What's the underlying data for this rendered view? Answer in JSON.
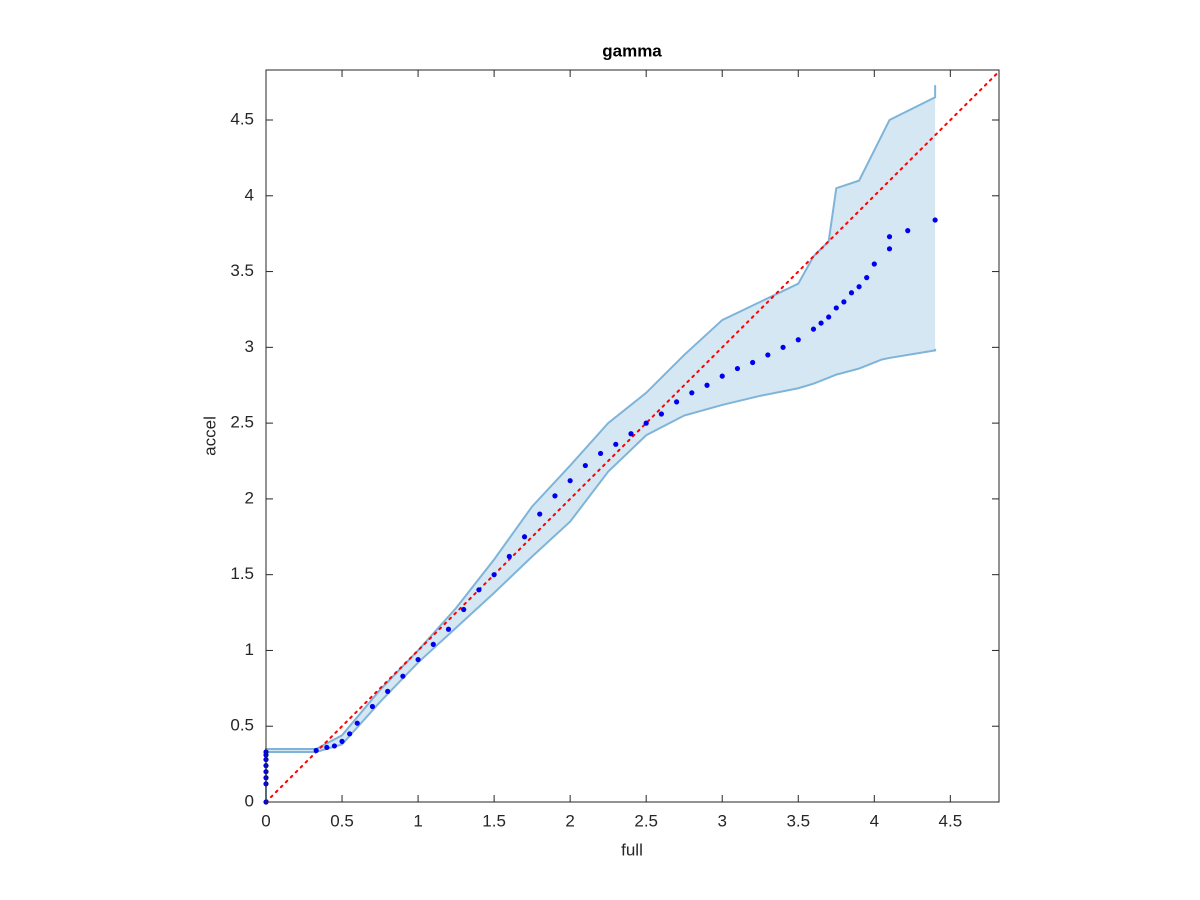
{
  "chart_data": {
    "type": "scatter",
    "title": "gamma",
    "x_label": "full",
    "y_label": "accel",
    "xlim": [
      0,
      4.82
    ],
    "ylim": [
      0,
      4.83
    ],
    "xticks": [
      0,
      0.5,
      1,
      1.5,
      2,
      2.5,
      3,
      3.5,
      4,
      4.5
    ],
    "yticks": [
      0,
      0.5,
      1,
      1.5,
      2,
      2.5,
      3,
      3.5,
      4,
      4.5
    ],
    "grid": false,
    "band": {
      "color": "#7fb4d9",
      "fill": "#d6e7f4",
      "x": [
        0,
        0,
        0.33,
        0.5,
        0.75,
        1.0,
        1.25,
        1.5,
        1.75,
        2.0,
        2.25,
        2.5,
        2.75,
        3.0,
        3.25,
        3.5,
        3.6,
        3.7,
        3.75,
        3.9,
        4.05,
        4.1,
        4.4,
        4.4
      ],
      "lower": [
        0,
        0.33,
        0.33,
        0.38,
        0.66,
        0.92,
        1.15,
        1.38,
        1.62,
        1.85,
        2.18,
        2.42,
        2.55,
        2.62,
        2.68,
        2.73,
        2.76,
        2.8,
        2.82,
        2.86,
        2.92,
        2.93,
        2.98,
        2.99
      ],
      "upper": [
        0,
        0.35,
        0.35,
        0.44,
        0.74,
        1.0,
        1.28,
        1.6,
        1.95,
        2.22,
        2.5,
        2.7,
        2.95,
        3.18,
        3.3,
        3.42,
        3.6,
        3.7,
        4.05,
        4.1,
        4.4,
        4.5,
        4.65,
        4.73
      ]
    },
    "reference_line": {
      "color": "#ff0000",
      "x": [
        0,
        4.82
      ],
      "y": [
        0,
        4.82
      ]
    },
    "series": [
      {
        "color": "#0000ee",
        "x": [
          0,
          0,
          0,
          0,
          0,
          0,
          0,
          0,
          0.33,
          0.4,
          0.45,
          0.5,
          0.55,
          0.6,
          0.7,
          0.8,
          0.9,
          1.0,
          1.1,
          1.2,
          1.3,
          1.4,
          1.5,
          1.6,
          1.7,
          1.8,
          1.9,
          2.0,
          2.1,
          2.2,
          2.3,
          2.4,
          2.5,
          2.6,
          2.7,
          2.8,
          2.9,
          3.0,
          3.1,
          3.2,
          3.3,
          3.4,
          3.5,
          3.6,
          3.65,
          3.7,
          3.75,
          3.8,
          3.85,
          3.9,
          3.95,
          4.0,
          4.1,
          4.1,
          4.22,
          4.4
        ],
        "values": [
          0,
          0.12,
          0.16,
          0.2,
          0.24,
          0.28,
          0.31,
          0.33,
          0.34,
          0.36,
          0.37,
          0.4,
          0.45,
          0.52,
          0.63,
          0.73,
          0.83,
          0.94,
          1.04,
          1.14,
          1.27,
          1.4,
          1.5,
          1.62,
          1.75,
          1.9,
          2.02,
          2.12,
          2.22,
          2.3,
          2.36,
          2.43,
          2.5,
          2.56,
          2.64,
          2.7,
          2.75,
          2.81,
          2.86,
          2.9,
          2.95,
          3.0,
          3.05,
          3.12,
          3.16,
          3.2,
          3.26,
          3.3,
          3.36,
          3.4,
          3.46,
          3.55,
          3.65,
          3.73,
          3.77,
          3.84
        ]
      }
    ]
  }
}
